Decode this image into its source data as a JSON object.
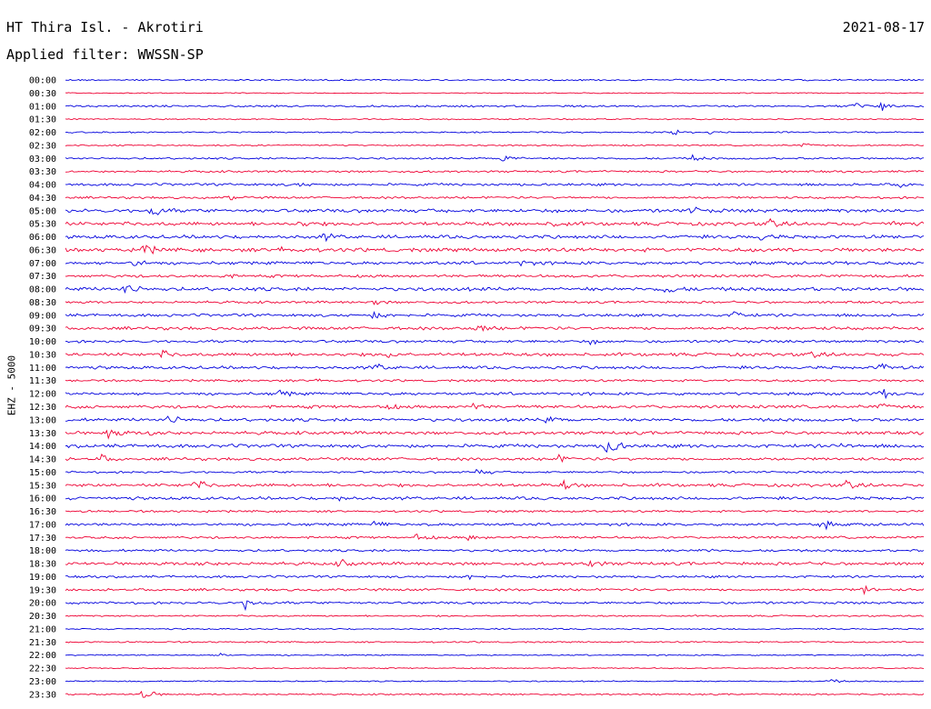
{
  "header": {
    "station": "HT Thira Isl. - Akrotiri",
    "date": "2021-08-17",
    "filter": "Applied filter: WWSSN-SP",
    "channel": "EHZ - 5000"
  },
  "chart_data": {
    "type": "line",
    "times": [
      "00:00",
      "00:30",
      "01:00",
      "01:30",
      "02:00",
      "02:30",
      "03:00",
      "03:30",
      "04:00",
      "04:30",
      "05:00",
      "05:30",
      "06:00",
      "06:30",
      "07:00",
      "07:30",
      "08:00",
      "08:30",
      "09:00",
      "09:30",
      "10:00",
      "10:30",
      "11:00",
      "11:30",
      "12:00",
      "12:30",
      "13:00",
      "13:30",
      "14:00",
      "14:30",
      "15:00",
      "15:30",
      "16:00",
      "16:30",
      "17:00",
      "17:30",
      "18:00",
      "18:30",
      "19:00",
      "19:30",
      "20:00",
      "20:30",
      "21:00",
      "21:30",
      "22:00",
      "22:30",
      "23:00",
      "23:30"
    ],
    "trace_colors": [
      "#0000dd",
      "#ee0033"
    ],
    "noise": [
      1,
      0.6,
      1.2,
      0.8,
      0.9,
      0.9,
      1.2,
      1.3,
      1.6,
      1.4,
      2.2,
      2.3,
      2.2,
      2.3,
      2.0,
      1.8,
      2.3,
      1.5,
      1.8,
      1.9,
      1.7,
      2.1,
      1.9,
      1.4,
      1.8,
      2.0,
      2.0,
      2.0,
      2.2,
      1.8,
      1.3,
      2.0,
      1.9,
      1.3,
      1.7,
      1.5,
      1.5,
      2.0,
      1.5,
      1.5,
      1.5,
      1.0,
      0.9,
      0.9,
      0.8,
      0.7,
      0.8,
      1.0
    ],
    "events": [
      [],
      [],
      [
        [
          0.95,
          7
        ],
        [
          0.92,
          3
        ]
      ],
      [],
      [
        [
          0.71,
          4
        ],
        [
          0.75,
          3
        ]
      ],
      [
        [
          0.86,
          3
        ]
      ],
      [
        [
          0.51,
          7
        ],
        [
          0.73,
          4
        ]
      ],
      [],
      [
        [
          0.27,
          3
        ],
        [
          0.97,
          4
        ]
      ],
      [
        [
          0.19,
          3
        ]
      ],
      [
        [
          0.1,
          8
        ],
        [
          0.73,
          5
        ]
      ],
      [
        [
          0.27,
          3
        ],
        [
          0.57,
          4
        ],
        [
          0.82,
          6
        ],
        [
          0.96,
          4
        ]
      ],
      [
        [
          0.3,
          4
        ],
        [
          0.81,
          4
        ]
      ],
      [
        [
          0.09,
          8
        ],
        [
          0.25,
          4
        ]
      ],
      [
        [
          0.08,
          6
        ],
        [
          0.53,
          4
        ]
      ],
      [
        [
          0.18,
          3
        ]
      ],
      [
        [
          0.07,
          10
        ],
        [
          0.7,
          6
        ]
      ],
      [
        [
          0.36,
          3
        ]
      ],
      [
        [
          0.36,
          5
        ],
        [
          0.78,
          5
        ]
      ],
      [
        [
          0.48,
          5
        ]
      ],
      [
        [
          0.61,
          3
        ]
      ],
      [
        [
          0.11,
          5
        ],
        [
          0.37,
          5
        ],
        [
          0.87,
          4
        ]
      ],
      [
        [
          0.36,
          5
        ],
        [
          0.95,
          7
        ]
      ],
      [
        [
          0.29,
          3
        ]
      ],
      [
        [
          0.25,
          5
        ],
        [
          0.95,
          7
        ]
      ],
      [
        [
          0.37,
          6
        ],
        [
          0.47,
          6
        ],
        [
          0.95,
          4
        ]
      ],
      [
        [
          0.12,
          8
        ],
        [
          0.56,
          5
        ]
      ],
      [
        [
          0.05,
          8
        ],
        [
          0.1,
          6
        ]
      ],
      [
        [
          0.63,
          16
        ],
        [
          0.9,
          4
        ]
      ],
      [
        [
          0.04,
          5
        ],
        [
          0.57,
          6
        ]
      ],
      [
        [
          0.48,
          4
        ]
      ],
      [
        [
          0.15,
          7
        ],
        [
          0.58,
          6
        ],
        [
          0.91,
          6
        ]
      ],
      [
        [
          0.32,
          4
        ]
      ],
      [],
      [
        [
          0.36,
          4
        ],
        [
          0.88,
          7
        ]
      ],
      [
        [
          0.41,
          6
        ],
        [
          0.47,
          4
        ]
      ],
      [
        [
          0.74,
          3
        ]
      ],
      [
        [
          0.15,
          5
        ],
        [
          0.32,
          5
        ],
        [
          0.61,
          5
        ]
      ],
      [
        [
          0.47,
          4
        ]
      ],
      [
        [
          0.93,
          6
        ]
      ],
      [
        [
          0.21,
          9
        ]
      ],
      [],
      [],
      [],
      [
        [
          0.18,
          3
        ]
      ],
      [],
      [
        [
          0.89,
          3
        ]
      ],
      [
        [
          0.09,
          8
        ]
      ]
    ]
  }
}
